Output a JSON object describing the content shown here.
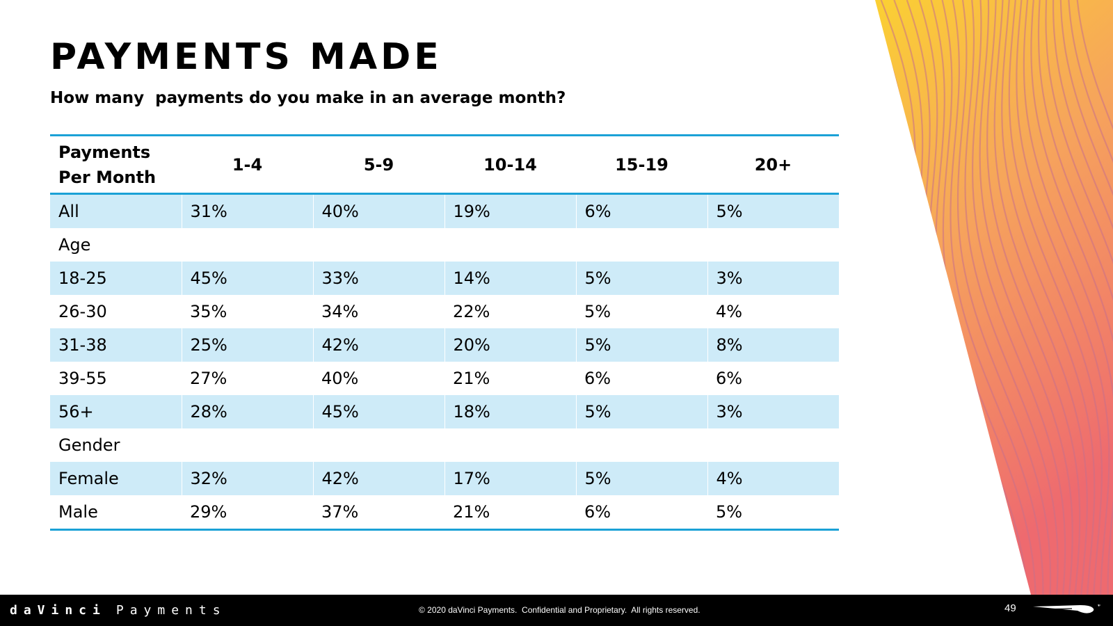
{
  "page": {
    "title": "PAYMENTS MADE",
    "subtitle": "How many  payments do you make in an average month?"
  },
  "table": {
    "row_header": [
      "Payments",
      "Per Month"
    ],
    "columns": [
      "1-4",
      "5-9",
      "10-14",
      "15-19",
      "20+"
    ],
    "rows": [
      {
        "label": "All",
        "values": [
          "31%",
          "40%",
          "19%",
          "6%",
          "5%"
        ]
      },
      {
        "label": "Age",
        "values": []
      },
      {
        "label": "18-25",
        "values": [
          "45%",
          "33%",
          "14%",
          "5%",
          "3%"
        ]
      },
      {
        "label": "26-30",
        "values": [
          "35%",
          "34%",
          "22%",
          "5%",
          "4%"
        ]
      },
      {
        "label": "31-38",
        "values": [
          "25%",
          "42%",
          "20%",
          "5%",
          "8%"
        ]
      },
      {
        "label": "39-55",
        "values": [
          "27%",
          "40%",
          "21%",
          "6%",
          "6%"
        ]
      },
      {
        "label": "56+",
        "values": [
          "28%",
          "45%",
          "18%",
          "5%",
          "3%"
        ]
      },
      {
        "label": "Gender",
        "values": []
      },
      {
        "label": "Female",
        "values": [
          "32%",
          "42%",
          "17%",
          "5%",
          "4%"
        ]
      },
      {
        "label": "Male",
        "values": [
          "29%",
          "37%",
          "21%",
          "6%",
          "5%"
        ]
      }
    ]
  },
  "footer": {
    "brand_primary": "daVinci",
    "brand_secondary": "Payments",
    "copyright": "© 2020 daVinci Payments.  Confidential and Proprietary.  All rights reserved.",
    "page_number": "49"
  },
  "colors": {
    "table_rule": "#1ba1d6",
    "row_shade": "#ceebf8",
    "decor_gradient": [
      "#fbd033",
      "#f6a45c",
      "#ee6a6f"
    ],
    "footer_bg": "#000000"
  }
}
